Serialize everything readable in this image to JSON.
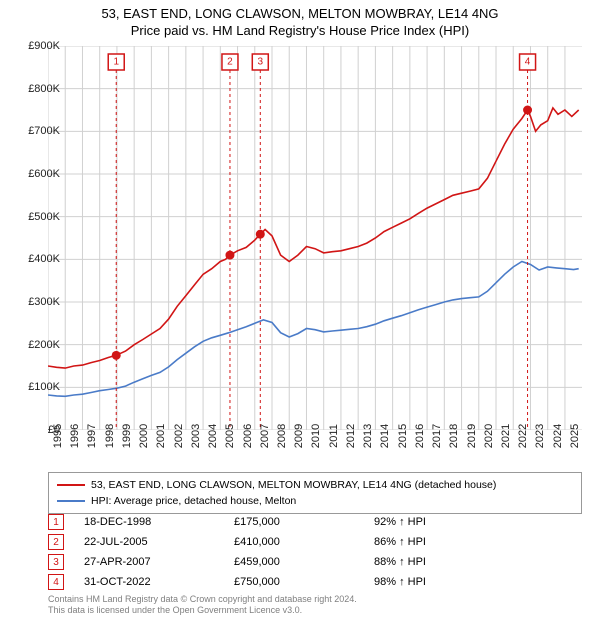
{
  "title_line1": "53, EAST END, LONG CLAWSON, MELTON MOWBRAY, LE14 4NG",
  "title_line2": "Price paid vs. HM Land Registry's House Price Index (HPI)",
  "chart": {
    "type": "line",
    "background_color": "#ffffff",
    "grid_color": "#d0d0d0",
    "x": {
      "min": 1995,
      "max": 2025.99,
      "ticks": [
        1995,
        1996,
        1997,
        1998,
        1999,
        2000,
        2001,
        2002,
        2003,
        2004,
        2005,
        2006,
        2007,
        2008,
        2009,
        2010,
        2011,
        2012,
        2013,
        2014,
        2015,
        2016,
        2017,
        2018,
        2019,
        2020,
        2021,
        2022,
        2023,
        2024,
        2025
      ],
      "tick_labels": [
        "1995",
        "1996",
        "1997",
        "1998",
        "1999",
        "2000",
        "2001",
        "2002",
        "2003",
        "2004",
        "2005",
        "2006",
        "2007",
        "2008",
        "2009",
        "2010",
        "2011",
        "2012",
        "2013",
        "2014",
        "2015",
        "2016",
        "2017",
        "2018",
        "2019",
        "2020",
        "2021",
        "2022",
        "2023",
        "2024",
        "2025"
      ]
    },
    "y": {
      "min": 0,
      "max": 900000,
      "ticks": [
        0,
        100000,
        200000,
        300000,
        400000,
        500000,
        600000,
        700000,
        800000,
        900000
      ],
      "tick_labels": [
        "£0",
        "£100K",
        "£200K",
        "£300K",
        "£400K",
        "£500K",
        "£600K",
        "£700K",
        "£800K",
        "£900K"
      ]
    },
    "series": [
      {
        "id": "price_paid",
        "label": "53, EAST END, LONG CLAWSON, MELTON MOWBRAY, LE14 4NG (detached house)",
        "color": "#d11515",
        "line_width": 1.8,
        "points": [
          [
            1995.0,
            150000
          ],
          [
            1995.5,
            147000
          ],
          [
            1996.0,
            145000
          ],
          [
            1996.5,
            150000
          ],
          [
            1997.0,
            152000
          ],
          [
            1997.5,
            158000
          ],
          [
            1998.0,
            163000
          ],
          [
            1998.5,
            170000
          ],
          [
            1998.96,
            175000
          ],
          [
            1999.5,
            185000
          ],
          [
            2000.0,
            200000
          ],
          [
            2000.5,
            212000
          ],
          [
            2001.0,
            225000
          ],
          [
            2001.5,
            238000
          ],
          [
            2002.0,
            260000
          ],
          [
            2002.5,
            290000
          ],
          [
            2003.0,
            315000
          ],
          [
            2003.5,
            340000
          ],
          [
            2004.0,
            365000
          ],
          [
            2004.5,
            378000
          ],
          [
            2005.0,
            395000
          ],
          [
            2005.3,
            400000
          ],
          [
            2005.56,
            410000
          ],
          [
            2006.0,
            420000
          ],
          [
            2006.5,
            428000
          ],
          [
            2007.0,
            445000
          ],
          [
            2007.32,
            459000
          ],
          [
            2007.6,
            470000
          ],
          [
            2008.0,
            455000
          ],
          [
            2008.5,
            410000
          ],
          [
            2009.0,
            395000
          ],
          [
            2009.5,
            410000
          ],
          [
            2010.0,
            430000
          ],
          [
            2010.5,
            425000
          ],
          [
            2011.0,
            415000
          ],
          [
            2011.5,
            418000
          ],
          [
            2012.0,
            420000
          ],
          [
            2012.5,
            425000
          ],
          [
            2013.0,
            430000
          ],
          [
            2013.5,
            438000
          ],
          [
            2014.0,
            450000
          ],
          [
            2014.5,
            465000
          ],
          [
            2015.0,
            475000
          ],
          [
            2015.5,
            485000
          ],
          [
            2016.0,
            495000
          ],
          [
            2016.5,
            508000
          ],
          [
            2017.0,
            520000
          ],
          [
            2017.5,
            530000
          ],
          [
            2018.0,
            540000
          ],
          [
            2018.5,
            550000
          ],
          [
            2019.0,
            555000
          ],
          [
            2019.5,
            560000
          ],
          [
            2020.0,
            565000
          ],
          [
            2020.5,
            590000
          ],
          [
            2021.0,
            630000
          ],
          [
            2021.5,
            670000
          ],
          [
            2022.0,
            705000
          ],
          [
            2022.5,
            730000
          ],
          [
            2022.83,
            750000
          ],
          [
            2023.0,
            735000
          ],
          [
            2023.3,
            700000
          ],
          [
            2023.6,
            715000
          ],
          [
            2024.0,
            725000
          ],
          [
            2024.3,
            755000
          ],
          [
            2024.6,
            740000
          ],
          [
            2025.0,
            750000
          ],
          [
            2025.4,
            735000
          ],
          [
            2025.8,
            750000
          ]
        ]
      },
      {
        "id": "hpi",
        "label": "HPI: Average price, detached house, Melton",
        "color": "#4a7bc8",
        "line_width": 1.3,
        "points": [
          [
            1995.0,
            82000
          ],
          [
            1995.5,
            80000
          ],
          [
            1996.0,
            79000
          ],
          [
            1996.5,
            82000
          ],
          [
            1997.0,
            84000
          ],
          [
            1997.5,
            88000
          ],
          [
            1998.0,
            92000
          ],
          [
            1998.5,
            95000
          ],
          [
            1999.0,
            98000
          ],
          [
            1999.5,
            103000
          ],
          [
            2000.0,
            112000
          ],
          [
            2000.5,
            120000
          ],
          [
            2001.0,
            128000
          ],
          [
            2001.5,
            135000
          ],
          [
            2002.0,
            148000
          ],
          [
            2002.5,
            165000
          ],
          [
            2003.0,
            180000
          ],
          [
            2003.5,
            195000
          ],
          [
            2004.0,
            208000
          ],
          [
            2004.5,
            216000
          ],
          [
            2005.0,
            222000
          ],
          [
            2005.5,
            228000
          ],
          [
            2006.0,
            235000
          ],
          [
            2006.5,
            242000
          ],
          [
            2007.0,
            250000
          ],
          [
            2007.5,
            258000
          ],
          [
            2008.0,
            252000
          ],
          [
            2008.5,
            228000
          ],
          [
            2009.0,
            218000
          ],
          [
            2009.5,
            226000
          ],
          [
            2010.0,
            238000
          ],
          [
            2010.5,
            235000
          ],
          [
            2011.0,
            230000
          ],
          [
            2011.5,
            232000
          ],
          [
            2012.0,
            234000
          ],
          [
            2012.5,
            236000
          ],
          [
            2013.0,
            238000
          ],
          [
            2013.5,
            242000
          ],
          [
            2014.0,
            248000
          ],
          [
            2014.5,
            256000
          ],
          [
            2015.0,
            262000
          ],
          [
            2015.5,
            268000
          ],
          [
            2016.0,
            275000
          ],
          [
            2016.5,
            282000
          ],
          [
            2017.0,
            288000
          ],
          [
            2017.5,
            294000
          ],
          [
            2018.0,
            300000
          ],
          [
            2018.5,
            305000
          ],
          [
            2019.0,
            308000
          ],
          [
            2019.5,
            310000
          ],
          [
            2020.0,
            312000
          ],
          [
            2020.5,
            325000
          ],
          [
            2021.0,
            345000
          ],
          [
            2021.5,
            365000
          ],
          [
            2022.0,
            382000
          ],
          [
            2022.5,
            395000
          ],
          [
            2023.0,
            388000
          ],
          [
            2023.5,
            375000
          ],
          [
            2024.0,
            382000
          ],
          [
            2024.5,
            380000
          ],
          [
            2025.0,
            378000
          ],
          [
            2025.5,
            376000
          ],
          [
            2025.8,
            378000
          ]
        ]
      }
    ],
    "markers": [
      {
        "n": "1",
        "x": 1998.96,
        "y": 175000,
        "color": "#d11515"
      },
      {
        "n": "2",
        "x": 2005.56,
        "y": 410000,
        "color": "#d11515"
      },
      {
        "n": "3",
        "x": 2007.32,
        "y": 459000,
        "color": "#d11515"
      },
      {
        "n": "4",
        "x": 2022.83,
        "y": 750000,
        "color": "#d11515"
      }
    ],
    "flag_y": 16
  },
  "legend_items": [
    {
      "color": "#d11515",
      "text": "53, EAST END, LONG CLAWSON, MELTON MOWBRAY, LE14 4NG (detached house)"
    },
    {
      "color": "#4a7bc8",
      "text": "HPI: Average price, detached house, Melton"
    }
  ],
  "events": [
    {
      "n": "1",
      "date": "18-DEC-1998",
      "price": "£175,000",
      "pct": "92% ↑ HPI",
      "color": "#d11515"
    },
    {
      "n": "2",
      "date": "22-JUL-2005",
      "price": "£410,000",
      "pct": "86% ↑ HPI",
      "color": "#d11515"
    },
    {
      "n": "3",
      "date": "27-APR-2007",
      "price": "£459,000",
      "pct": "88% ↑ HPI",
      "color": "#d11515"
    },
    {
      "n": "4",
      "date": "31-OCT-2022",
      "price": "£750,000",
      "pct": "98% ↑ HPI",
      "color": "#d11515"
    }
  ],
  "footer_line1": "Contains HM Land Registry data © Crown copyright and database right 2024.",
  "footer_line2": "This data is licensed under the Open Government Licence v3.0.",
  "colors": {
    "text": "#111111",
    "footer": "#808080"
  }
}
